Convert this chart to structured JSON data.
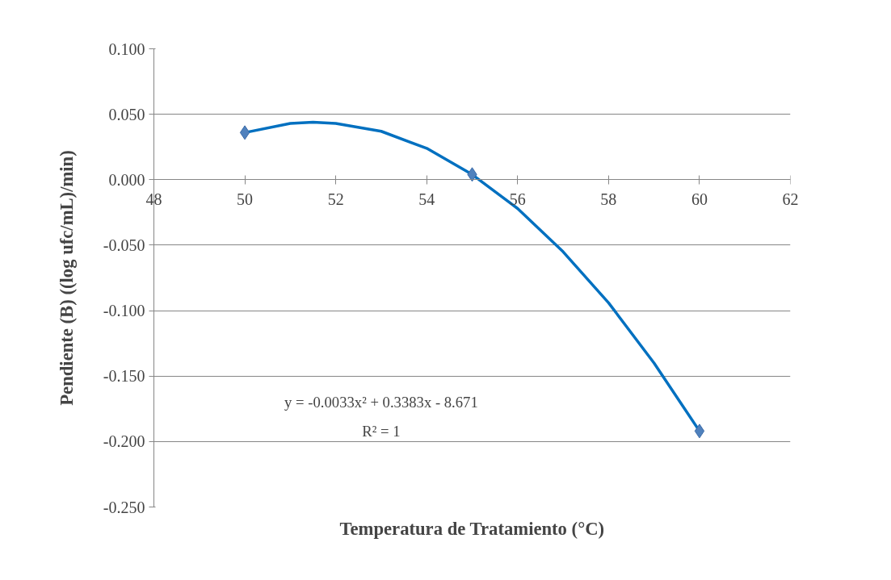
{
  "chart_data": {
    "type": "scatter",
    "xlabel": "Temperatura de Tratamiento (°C)",
    "ylabel": "Pendiente (B) ((log ufc/mL)/min)",
    "xlim": [
      48,
      62
    ],
    "xticks": [
      48,
      50,
      52,
      54,
      56,
      58,
      60,
      62
    ],
    "ylim": [
      -0.25,
      0.1
    ],
    "yticks": [
      {
        "value": -0.25,
        "label": "-0.250"
      },
      {
        "value": -0.2,
        "label": "-0.200"
      },
      {
        "value": -0.15,
        "label": "-0.150"
      },
      {
        "value": -0.1,
        "label": "-0.100"
      },
      {
        "value": -0.05,
        "label": "-0.050"
      },
      {
        "value": 0,
        "label": "0.000"
      },
      {
        "value": 0.05,
        "label": "0.050"
      },
      {
        "value": 0.1,
        "label": "0.100"
      }
    ],
    "grid": "y",
    "series": [
      {
        "type": "line",
        "color": "#0070c0",
        "x": [
          50,
          51,
          51.5,
          52,
          53,
          54,
          55,
          56,
          57,
          58,
          59,
          60
        ],
        "values": [
          0.036,
          0.043,
          0.044,
          0.043,
          0.037,
          0.024,
          0.004,
          -0.022,
          -0.055,
          -0.094,
          -0.14,
          -0.192
        ]
      },
      {
        "color": "#4f81bd",
        "marker": "diamond",
        "x": [
          50,
          55,
          60
        ],
        "values": [
          0.036,
          0.004,
          -0.192
        ]
      }
    ],
    "annotations": [
      "y = -0.0033x² + 0.3383x - 8.671",
      "R² = 1"
    ]
  }
}
